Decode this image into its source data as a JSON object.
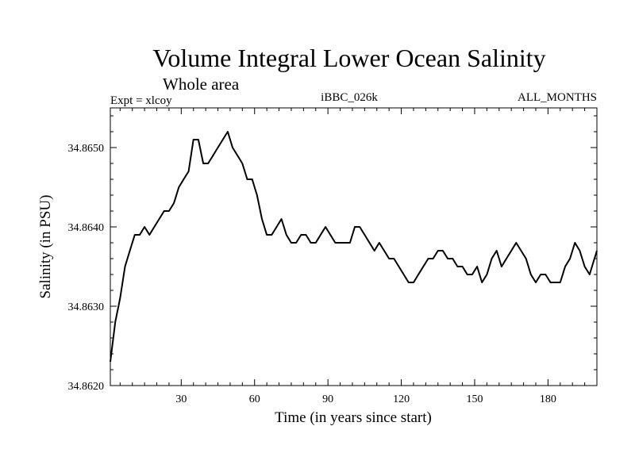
{
  "chart_data": {
    "type": "line",
    "title": "Volume Integral Lower Ocean Salinity",
    "subtitle": "Whole area",
    "experiment_label": "Expt = xlcoy",
    "run_label": "iBBC_026k",
    "period_label": "ALL_MONTHS",
    "xlabel": "Time (in years since start)",
    "ylabel": "Salinity (in PSU)",
    "xlim": [
      1,
      200
    ],
    "ylim": [
      34.862,
      34.8655
    ],
    "x_ticks": [
      30,
      60,
      90,
      120,
      150,
      180
    ],
    "x_tick_labels": [
      "30",
      "60",
      "90",
      "120",
      "150",
      "180"
    ],
    "y_ticks": [
      34.862,
      34.863,
      34.864,
      34.865
    ],
    "y_tick_labels": [
      "34.8620",
      "34.8630",
      "34.8640",
      "34.8650"
    ],
    "grid": false,
    "series": [
      {
        "name": "Salinity",
        "color": "#000000",
        "x": [
          1,
          3,
          5,
          7,
          9,
          11,
          13,
          15,
          17,
          19,
          21,
          23,
          25,
          27,
          29,
          31,
          33,
          35,
          37,
          39,
          41,
          43,
          45,
          47,
          49,
          51,
          53,
          55,
          57,
          59,
          61,
          63,
          65,
          67,
          69,
          71,
          73,
          75,
          77,
          79,
          81,
          83,
          85,
          87,
          89,
          91,
          93,
          95,
          97,
          99,
          101,
          103,
          105,
          107,
          109,
          111,
          113,
          115,
          117,
          119,
          121,
          123,
          125,
          127,
          129,
          131,
          133,
          135,
          137,
          139,
          141,
          143,
          145,
          147,
          149,
          151,
          153,
          155,
          157,
          159,
          161,
          163,
          165,
          167,
          169,
          171,
          173,
          175,
          177,
          179,
          181,
          183,
          185,
          187,
          189,
          191,
          193,
          195,
          197,
          199,
          200
        ],
        "values": [
          34.8623,
          34.8628,
          34.8631,
          34.8635,
          34.8637,
          34.8639,
          34.8639,
          34.864,
          34.8639,
          34.864,
          34.8641,
          34.8642,
          34.8642,
          34.8643,
          34.8645,
          34.8646,
          34.8647,
          34.8651,
          34.8651,
          34.8648,
          34.8648,
          34.8649,
          34.865,
          34.8651,
          34.8652,
          34.865,
          34.8649,
          34.8648,
          34.8646,
          34.8646,
          34.8644,
          34.8641,
          34.8639,
          34.8639,
          34.864,
          34.8641,
          34.8639,
          34.8638,
          34.8638,
          34.8639,
          34.8639,
          34.8638,
          34.8638,
          34.8639,
          34.864,
          34.8639,
          34.8638,
          34.8638,
          34.8638,
          34.8638,
          34.864,
          34.864,
          34.8639,
          34.8638,
          34.8637,
          34.8638,
          34.8637,
          34.8636,
          34.8636,
          34.8635,
          34.8634,
          34.8633,
          34.8633,
          34.8634,
          34.8635,
          34.8636,
          34.8636,
          34.8637,
          34.8637,
          34.8636,
          34.8636,
          34.8635,
          34.8635,
          34.8634,
          34.8634,
          34.8635,
          34.8633,
          34.8634,
          34.8636,
          34.8637,
          34.8635,
          34.8636,
          34.8637,
          34.8638,
          34.8637,
          34.8636,
          34.8634,
          34.8633,
          34.8634,
          34.8634,
          34.8633,
          34.8633,
          34.8633,
          34.8635,
          34.8636,
          34.8638,
          34.8637,
          34.8635,
          34.8634,
          34.8636,
          34.8637
        ]
      }
    ]
  }
}
